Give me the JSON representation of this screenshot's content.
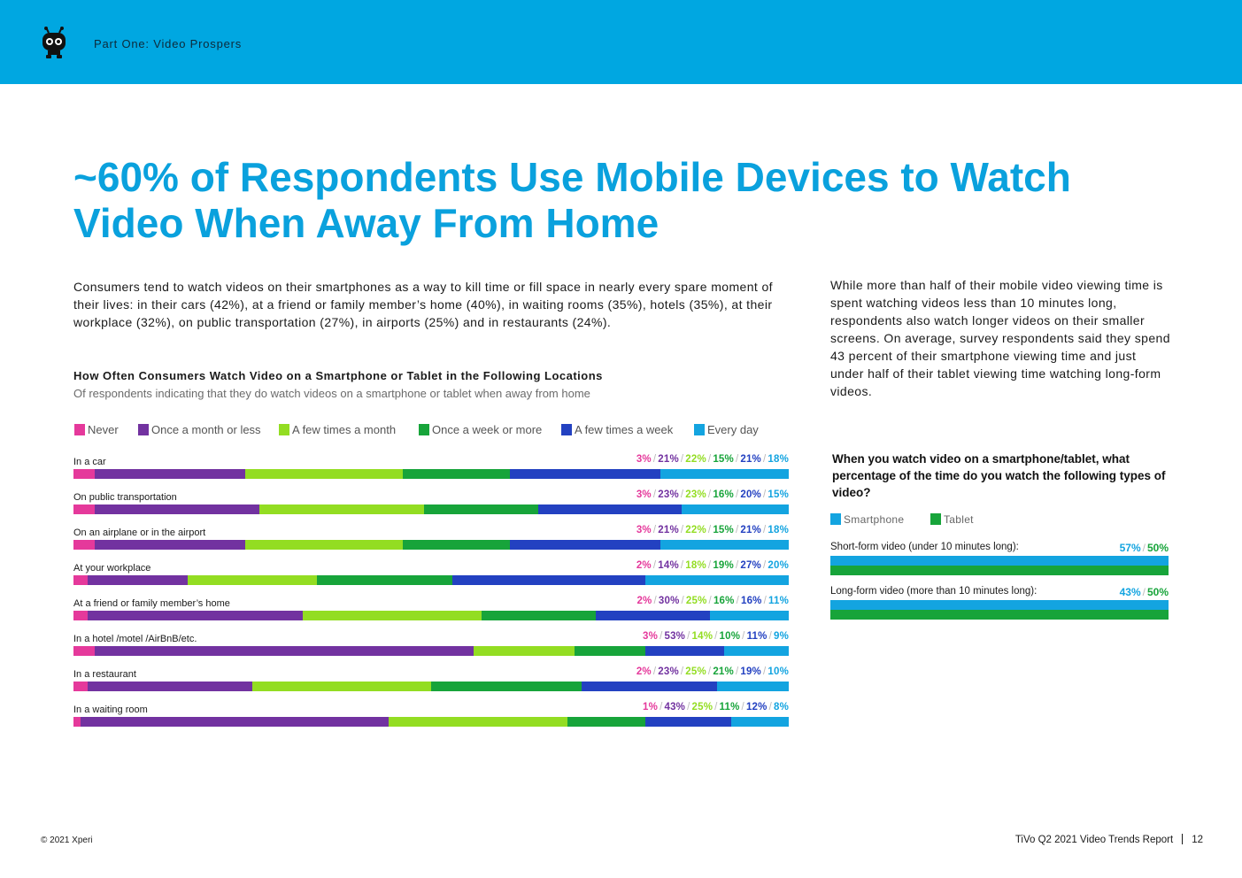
{
  "header": {
    "section_title": "Part One: Video Prospers"
  },
  "headline": "~60% of Respondents Use Mobile Devices to Watch Video When Away From Home",
  "intro_text": "Consumers tend to watch videos on their smartphones as a way to kill time or fill space in nearly every spare moment of their lives: in their cars (42%), at a friend or family member’s home (40%), in waiting rooms (35%), hotels (35%), at their workplace (32%), on public transportation (27%), in airports (25%) and in restaurants (24%).",
  "side_text": "While more than half of their mobile video viewing time is spent watching videos less than 10 minutes long, respondents also watch longer videos on their smaller screens. On average, survey respondents said they spend 43 percent of their smartphone viewing time and just under half of their tablet viewing time watching long-form videos.",
  "colors": {
    "header": "#00a7e1",
    "never": "#e5399b",
    "monthly_or_less": "#7232a0",
    "few_month": "#93dd22",
    "weekly_or_more": "#17a43a",
    "few_week": "#2341c1",
    "every_day": "#13a4e0",
    "smartphone": "#13a4e0",
    "tablet": "#17a43a"
  },
  "chart_data": [
    {
      "type": "bar",
      "orientation": "horizontal",
      "stacked": true,
      "title": "How Often Consumers Watch Video on a Smartphone or Tablet in the Following Locations",
      "subtitle": "Of respondents indicating that they do watch videos on a smartphone or tablet when away from home",
      "legend": [
        "Never",
        "Once a month or less",
        "A few times a month",
        "Once a week or more",
        "A few times a week",
        "Every day"
      ],
      "legend_position": "top-left",
      "categories": [
        "In a car",
        "On public transportation",
        "On an airplane or in the airport",
        "At your workplace",
        "At a friend or family member’s home",
        "In a hotel /motel /AirBnB/etc.",
        "In a restaurant",
        "In a waiting room"
      ],
      "series": [
        {
          "name": "Never",
          "values": [
            3,
            3,
            3,
            2,
            2,
            3,
            2,
            1
          ]
        },
        {
          "name": "Once a month or less",
          "values": [
            21,
            23,
            21,
            14,
            30,
            53,
            23,
            43
          ]
        },
        {
          "name": "A few times a month",
          "values": [
            22,
            23,
            22,
            18,
            25,
            14,
            25,
            25
          ]
        },
        {
          "name": "Once a week or more",
          "values": [
            15,
            16,
            15,
            19,
            16,
            10,
            21,
            11
          ]
        },
        {
          "name": "A few times a week",
          "values": [
            21,
            20,
            21,
            27,
            16,
            11,
            19,
            12
          ]
        },
        {
          "name": "Every day",
          "values": [
            18,
            15,
            18,
            20,
            11,
            9,
            10,
            8
          ]
        }
      ],
      "value_suffix": "%"
    },
    {
      "type": "bar",
      "orientation": "horizontal",
      "title": "When you watch video on a smartphone/tablet, what percentage of the time do you watch the following types of video?",
      "legend": [
        "Smartphone",
        "Tablet"
      ],
      "legend_position": "top-left",
      "categories": [
        "Short-form video (under 10 minutes long):",
        "Long-form video (more than 10 minutes long):"
      ],
      "series": [
        {
          "name": "Smartphone",
          "values": [
            57,
            43
          ]
        },
        {
          "name": "Tablet",
          "values": [
            50,
            50
          ]
        }
      ],
      "value_suffix": "%"
    }
  ],
  "footer": {
    "copyright": "© 2021 Xperi",
    "report_title": "TiVo Q2 2021 Video Trends Report",
    "page_number": "12"
  }
}
